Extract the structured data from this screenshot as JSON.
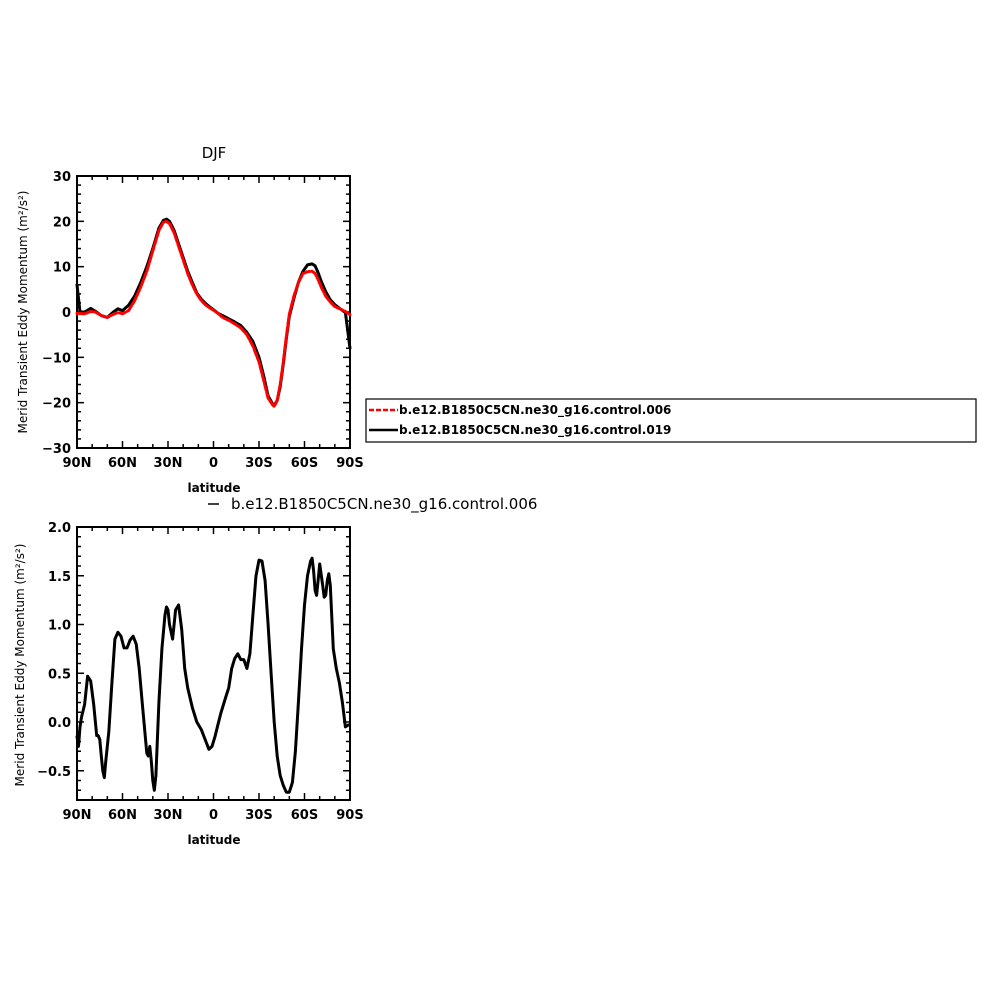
{
  "chart_data": [
    {
      "type": "line",
      "title": "DJF",
      "xlabel": "latitude",
      "ylabel": "Merid Transient Eddy Momentum (m²/s²)",
      "x_ticks": [
        90,
        60,
        30,
        0,
        -30,
        -60,
        -90
      ],
      "x_tick_labels": [
        "90N",
        "60N",
        "30N",
        "0",
        "30S",
        "60S",
        "90S"
      ],
      "xlim": [
        90,
        -90
      ],
      "ylim": [
        -30,
        30
      ],
      "y_ticks": [
        30,
        20,
        10,
        0,
        -10,
        -20,
        -30
      ],
      "y_tick_labels": [
        "30",
        "20",
        "10",
        "0",
        "−10",
        "−20",
        "−30"
      ],
      "legend_position": "right",
      "series": [
        {
          "name": "b.e12.B1850C5CN.ne30_g16.control.006",
          "color": "#ff0000",
          "dashed": true,
          "x": [
            90,
            85,
            81,
            78,
            74,
            70,
            66,
            63,
            60,
            56,
            52,
            48,
            44,
            40,
            36,
            33,
            31,
            29,
            26,
            23,
            20,
            17,
            14,
            11,
            8,
            5,
            2,
            0,
            -3,
            -6,
            -10,
            -14,
            -18,
            -22,
            -26,
            -30,
            -33,
            -36,
            -39,
            -40,
            -42,
            -44,
            -46,
            -48,
            -50,
            -53,
            -56,
            -59,
            -62,
            -65,
            -67,
            -69,
            -71,
            -74,
            -77,
            -80,
            -84,
            -87,
            -90
          ],
          "y": [
            -0.3,
            -0.4,
            0.1,
            0.0,
            -0.8,
            -1.2,
            -0.5,
            -0.1,
            -0.4,
            0.3,
            2.5,
            5.5,
            9.0,
            13.5,
            18.0,
            19.8,
            20.0,
            19.5,
            17.5,
            14.5,
            11.5,
            8.5,
            6.0,
            4.0,
            2.5,
            1.5,
            0.8,
            0.4,
            -0.3,
            -1.2,
            -1.8,
            -2.6,
            -3.5,
            -5.0,
            -7.5,
            -11.0,
            -15.0,
            -19.0,
            -20.5,
            -20.8,
            -19.5,
            -16.0,
            -11.0,
            -5.5,
            -0.5,
            3.5,
            6.5,
            8.5,
            8.9,
            9.0,
            8.5,
            7.2,
            5.5,
            3.5,
            2.2,
            1.2,
            0.6,
            0.1,
            -0.6
          ]
        },
        {
          "name": "b.e12.B1850C5CN.ne30_g16.control.019",
          "color": "#000000",
          "dashed": false,
          "x": [
            90,
            88,
            85,
            81,
            78,
            74,
            70,
            66,
            63,
            60,
            56,
            52,
            48,
            44,
            40,
            36,
            33,
            31,
            29,
            26,
            23,
            20,
            17,
            14,
            11,
            8,
            5,
            2,
            0,
            -3,
            -6,
            -10,
            -14,
            -18,
            -22,
            -26,
            -30,
            -33,
            -36,
            -39,
            -40,
            -42,
            -44,
            -46,
            -48,
            -50,
            -53,
            -56,
            -59,
            -62,
            -65,
            -67,
            -69,
            -71,
            -74,
            -77,
            -80,
            -84,
            -87,
            -90
          ],
          "y": [
            6.0,
            0.0,
            0.0,
            0.8,
            0.2,
            -0.8,
            -1.2,
            0.0,
            0.7,
            0.3,
            1.5,
            3.5,
            6.5,
            10.0,
            14.0,
            18.5,
            20.2,
            20.5,
            20.0,
            18.0,
            15.0,
            12.0,
            9.0,
            6.5,
            4.2,
            2.8,
            1.8,
            1.0,
            0.5,
            -0.3,
            -0.8,
            -1.5,
            -2.2,
            -3.0,
            -4.5,
            -6.5,
            -10.0,
            -14.0,
            -18.5,
            -20.3,
            -20.6,
            -19.5,
            -16.5,
            -11.5,
            -6.0,
            -1.0,
            3.0,
            6.5,
            9.0,
            10.4,
            10.6,
            10.2,
            8.7,
            6.8,
            4.5,
            2.7,
            1.6,
            0.6,
            -0.1,
            -8.0
          ]
        }
      ]
    },
    {
      "type": "line",
      "title": "b.e12.B1850C5CN.ne30_g16.control.006",
      "xlabel": "latitude",
      "ylabel": "Merid Transient Eddy Momentum (m²/s²)",
      "x_ticks": [
        90,
        60,
        30,
        0,
        -30,
        -60,
        -90
      ],
      "x_tick_labels": [
        "90N",
        "60N",
        "30N",
        "0",
        "30S",
        "60S",
        "90S"
      ],
      "xlim": [
        90,
        -90
      ],
      "ylim": [
        -0.8,
        2.0
      ],
      "y_ticks": [
        2.0,
        1.5,
        1.0,
        0.5,
        0.0,
        -0.5
      ],
      "y_tick_labels": [
        "2.0",
        "1.5",
        "1.0",
        "0.5",
        "0.0",
        "−0.5"
      ],
      "series": [
        {
          "name": "",
          "color": "#000000",
          "dashed": false,
          "x": [
            90,
            89,
            88,
            87,
            85,
            83,
            81,
            79,
            77,
            76,
            75,
            74,
            73,
            72,
            71,
            69,
            67,
            65,
            63,
            61,
            59,
            57,
            55,
            53,
            51,
            49,
            47,
            45,
            44,
            43,
            42,
            41,
            40,
            39,
            38,
            36,
            34,
            32,
            31,
            30,
            29,
            27,
            25,
            23,
            21,
            19,
            17,
            14,
            11,
            8,
            5,
            3,
            1,
            -1,
            -3,
            -5,
            -7,
            -8,
            -10,
            -12,
            -14,
            -16,
            -18,
            -20,
            -22,
            -24,
            -26,
            -28,
            -30,
            -32,
            -34,
            -36,
            -38,
            -40,
            -42,
            -44,
            -46,
            -48,
            -50,
            -52,
            -54,
            -56,
            -58,
            -60,
            -62,
            -64,
            -65,
            -66,
            -67,
            -68,
            -69,
            -70,
            -72,
            -73,
            -74,
            -75,
            -76,
            -77,
            -79,
            -81,
            -83,
            -85,
            -87,
            -89
          ],
          "y": [
            -0.15,
            -0.25,
            -0.05,
            0.05,
            0.18,
            0.47,
            0.42,
            0.18,
            -0.14,
            -0.14,
            -0.18,
            -0.35,
            -0.5,
            -0.57,
            -0.4,
            -0.1,
            0.4,
            0.85,
            0.92,
            0.88,
            0.76,
            0.76,
            0.84,
            0.88,
            0.8,
            0.55,
            0.2,
            -0.15,
            -0.32,
            -0.35,
            -0.25,
            -0.4,
            -0.6,
            -0.7,
            -0.55,
            0.2,
            0.75,
            1.1,
            1.18,
            1.15,
            1.0,
            0.85,
            1.15,
            1.2,
            0.95,
            0.55,
            0.35,
            0.15,
            0.0,
            -0.08,
            -0.2,
            -0.28,
            -0.25,
            -0.15,
            -0.02,
            0.1,
            0.2,
            0.25,
            0.35,
            0.55,
            0.65,
            0.7,
            0.64,
            0.64,
            0.55,
            0.7,
            1.1,
            1.5,
            1.66,
            1.65,
            1.45,
            1.0,
            0.5,
            0.0,
            -0.35,
            -0.55,
            -0.65,
            -0.72,
            -0.72,
            -0.62,
            -0.3,
            0.2,
            0.75,
            1.2,
            1.5,
            1.65,
            1.68,
            1.55,
            1.35,
            1.3,
            1.45,
            1.62,
            1.4,
            1.28,
            1.3,
            1.45,
            1.52,
            1.4,
            0.75,
            0.55,
            0.4,
            0.2,
            -0.05,
            -0.03
          ]
        }
      ]
    }
  ]
}
